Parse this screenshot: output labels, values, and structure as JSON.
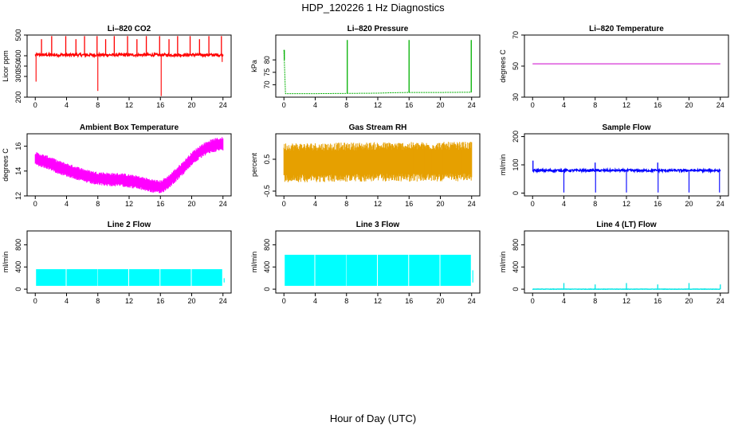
{
  "page": {
    "title": "HDP_120226  1 Hz Diagnostics",
    "x_caption": "Hour of Day (UTC)"
  },
  "chart_data": [
    {
      "type": "line",
      "title": "Li–820 CO2",
      "ylabel": "Licor ppm",
      "color": "#ff0000",
      "xlim": [
        0,
        24
      ],
      "ylim": [
        200,
        500
      ],
      "xticks": [
        0,
        4,
        8,
        12,
        16,
        20,
        24
      ],
      "yticks": [
        200,
        300,
        350,
        400,
        500
      ],
      "style": "noisy-band",
      "series": [
        {
          "x": [
            0,
            4,
            8,
            12,
            16,
            20,
            24
          ],
          "values": [
            404,
            404,
            404,
            404,
            404,
            404,
            404
          ]
        }
      ],
      "band": 7,
      "spikes_up": [
        [
          0.8,
          480
        ],
        [
          2.1,
          495
        ],
        [
          3.9,
          495
        ],
        [
          5.2,
          480
        ],
        [
          6.3,
          495
        ],
        [
          7.9,
          495
        ],
        [
          9.0,
          480
        ],
        [
          10.1,
          495
        ],
        [
          11.8,
          495
        ],
        [
          13.0,
          480
        ],
        [
          14.2,
          495
        ],
        [
          15.9,
          495
        ],
        [
          17.1,
          480
        ],
        [
          18.2,
          495
        ],
        [
          19.8,
          495
        ],
        [
          21.0,
          480
        ],
        [
          22.2,
          495
        ],
        [
          23.8,
          495
        ]
      ],
      "spikes_down": [
        [
          0.1,
          275
        ],
        [
          8.0,
          230
        ],
        [
          16.1,
          205
        ],
        [
          23.9,
          370
        ]
      ]
    },
    {
      "type": "line",
      "title": "Li–820 Pressure",
      "ylabel": "kPa",
      "color": "#00b000",
      "xlim": [
        0,
        24
      ],
      "ylim": [
        65,
        90
      ],
      "xticks": [
        0,
        4,
        8,
        12,
        16,
        20,
        24
      ],
      "yticks": [
        70,
        75,
        80
      ],
      "style": "step-line",
      "series": [
        {
          "x": [
            0,
            0.05,
            0.2,
            4,
            8,
            12,
            13.9,
            14.0,
            16,
            20,
            24
          ],
          "values": [
            84,
            80,
            66.4,
            66.4,
            66.5,
            66.6,
            66.8,
            66.8,
            66.9,
            66.9,
            67.0
          ]
        }
      ],
      "spikes_up": [
        [
          0.05,
          84
        ],
        [
          8.1,
          88
        ],
        [
          16.0,
          88
        ],
        [
          23.95,
          88
        ]
      ]
    },
    {
      "type": "line",
      "title": "Li–820 Temperature",
      "ylabel": "degrees C",
      "color": "#cc00cc",
      "xlim": [
        0,
        24
      ],
      "ylim": [
        30,
        70
      ],
      "xticks": [
        0,
        4,
        8,
        12,
        16,
        20,
        24
      ],
      "yticks": [
        30,
        50,
        70
      ],
      "style": "line",
      "series": [
        {
          "x": [
            0,
            24
          ],
          "values": [
            51.5,
            51.5
          ]
        }
      ]
    },
    {
      "type": "area",
      "title": "Ambient Box Temperature",
      "ylabel": "degrees C",
      "color": "#ff00ff",
      "xlim": [
        0,
        24
      ],
      "ylim": [
        12,
        17
      ],
      "xticks": [
        0,
        4,
        8,
        12,
        16,
        20,
        24
      ],
      "yticks": [
        12,
        14,
        16
      ],
      "style": "envelope",
      "series": [
        {
          "x": [
            0,
            1,
            2,
            3,
            4,
            5,
            6,
            7,
            8,
            9,
            10,
            11,
            12,
            13,
            14,
            15,
            16,
            17,
            18,
            19,
            20,
            21,
            22,
            23,
            24
          ],
          "values": [
            15.0,
            14.8,
            14.6,
            14.3,
            14.1,
            13.9,
            13.7,
            13.5,
            13.4,
            13.35,
            13.3,
            13.3,
            13.2,
            13.1,
            12.95,
            12.8,
            12.7,
            13.1,
            13.7,
            14.3,
            15.0,
            15.5,
            15.9,
            16.1,
            16.2
          ]
        }
      ],
      "band": 0.55
    },
    {
      "type": "area",
      "title": "Gas Stream RH",
      "ylabel": "percent",
      "color": "#e6a000",
      "xlim": [
        0,
        24
      ],
      "ylim": [
        -0.65,
        1.3
      ],
      "xticks": [
        0,
        4,
        8,
        12,
        16,
        20,
        24
      ],
      "yticks": [
        -0.5,
        0.5
      ],
      "style": "envelope",
      "series": [
        {
          "x": [
            0,
            6,
            12,
            18,
            24
          ],
          "values": [
            0.4,
            0.4,
            0.42,
            0.42,
            0.43
          ]
        }
      ],
      "band": 0.62
    },
    {
      "type": "line",
      "title": "Sample Flow",
      "ylabel": "ml/min",
      "color": "#0000ff",
      "xlim": [
        0,
        24
      ],
      "ylim": [
        -10,
        210
      ],
      "xticks": [
        0,
        4,
        8,
        12,
        16,
        20,
        24
      ],
      "yticks": [
        0,
        100,
        200
      ],
      "style": "noisy-band",
      "series": [
        {
          "x": [
            0,
            24
          ],
          "values": [
            80,
            80
          ]
        }
      ],
      "band": 4,
      "spikes_up": [
        [
          0.05,
          115
        ],
        [
          8.0,
          108
        ],
        [
          16.0,
          108
        ]
      ],
      "spikes_down": [
        [
          4.0,
          2
        ],
        [
          8.05,
          2
        ],
        [
          12.0,
          2
        ],
        [
          16.05,
          2
        ],
        [
          20.0,
          2
        ],
        [
          23.9,
          2
        ]
      ]
    },
    {
      "type": "area",
      "title": "Line 2 Flow",
      "ylabel": "ml/min",
      "color": "#00ffff",
      "xlim": [
        0,
        24
      ],
      "ylim": [
        -70,
        1050
      ],
      "xticks": [
        0,
        4,
        8,
        12,
        16,
        20,
        24
      ],
      "yticks": [
        0,
        400,
        800
      ],
      "style": "blocks",
      "blocks": [
        [
          0.1,
          3.9
        ],
        [
          4.0,
          7.95
        ],
        [
          8.0,
          11.9
        ],
        [
          12.0,
          15.9
        ],
        [
          16.0,
          19.9
        ],
        [
          20.0,
          23.9
        ]
      ],
      "range": [
        60,
        360
      ]
    },
    {
      "type": "area",
      "title": "Line 3 Flow",
      "ylabel": "ml/min",
      "color": "#00ffff",
      "xlim": [
        0,
        24
      ],
      "ylim": [
        -70,
        1050
      ],
      "xticks": [
        0,
        4,
        8,
        12,
        16,
        20,
        24
      ],
      "yticks": [
        0,
        400,
        800
      ],
      "style": "blocks",
      "blocks": [
        [
          0.1,
          3.9
        ],
        [
          4.0,
          7.95
        ],
        [
          8.0,
          11.9
        ],
        [
          12.0,
          15.9
        ],
        [
          16.0,
          19.9
        ],
        [
          20.0,
          23.9
        ]
      ],
      "range": [
        60,
        620
      ]
    },
    {
      "type": "line",
      "title": "Line 4 (LT) Flow",
      "ylabel": "ml/min",
      "color": "#00e5e5",
      "xlim": [
        0,
        24
      ],
      "ylim": [
        -70,
        1050
      ],
      "xticks": [
        0,
        4,
        8,
        12,
        16,
        20,
        24
      ],
      "yticks": [
        0,
        400,
        800
      ],
      "style": "noisy-band",
      "series": [
        {
          "x": [
            0,
            24
          ],
          "values": [
            0,
            0
          ]
        }
      ],
      "band": 3,
      "spikes_up": [
        [
          4.0,
          110
        ],
        [
          8.0,
          85
        ],
        [
          12.0,
          110
        ],
        [
          16.0,
          85
        ],
        [
          20.0,
          110
        ],
        [
          24.0,
          85
        ]
      ]
    }
  ]
}
